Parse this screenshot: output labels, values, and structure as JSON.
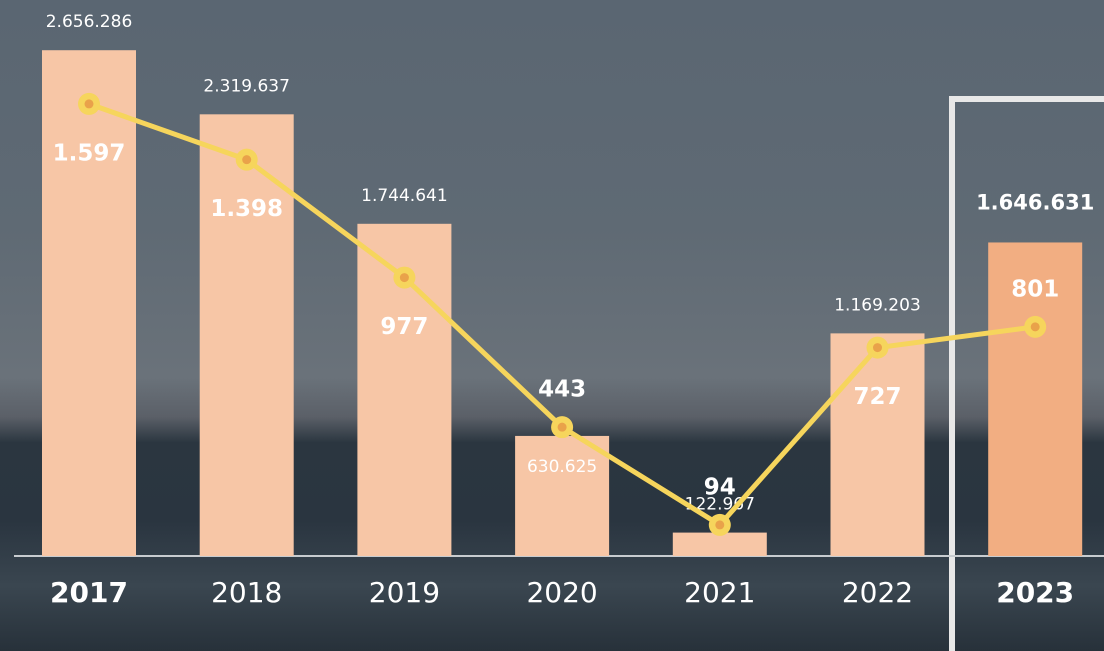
{
  "chart_data": {
    "type": "bar",
    "categories": [
      "2017",
      "2018",
      "2019",
      "2020",
      "2021",
      "2022",
      "2023"
    ],
    "series": [
      {
        "type": "bar",
        "colors": [
          "#f7c6a6",
          "#f7c6a6",
          "#f7c6a6",
          "#f7c6a6",
          "#f7c6a6",
          "#f7c6a6",
          "#f2ae82"
        ],
        "values": [
          2656286,
          2319637,
          1744641,
          630625,
          122967,
          1169203,
          1646631
        ],
        "value_labels": [
          "2.656.286",
          "2.319.637",
          "1.744.641",
          "630.625",
          "122.967",
          "1.169.203",
          "1.646.631"
        ]
      },
      {
        "type": "line",
        "axis": "y2",
        "color": "#f6d55c",
        "values": [
          1597,
          1398,
          977,
          443,
          94,
          727,
          801
        ],
        "value_labels": [
          "1.597",
          "1.398",
          "977",
          "443",
          "94",
          "727",
          "801"
        ]
      }
    ],
    "ylim": [
      0,
      2920000
    ],
    "y2lim": [
      -17,
      1968
    ]
  }
}
